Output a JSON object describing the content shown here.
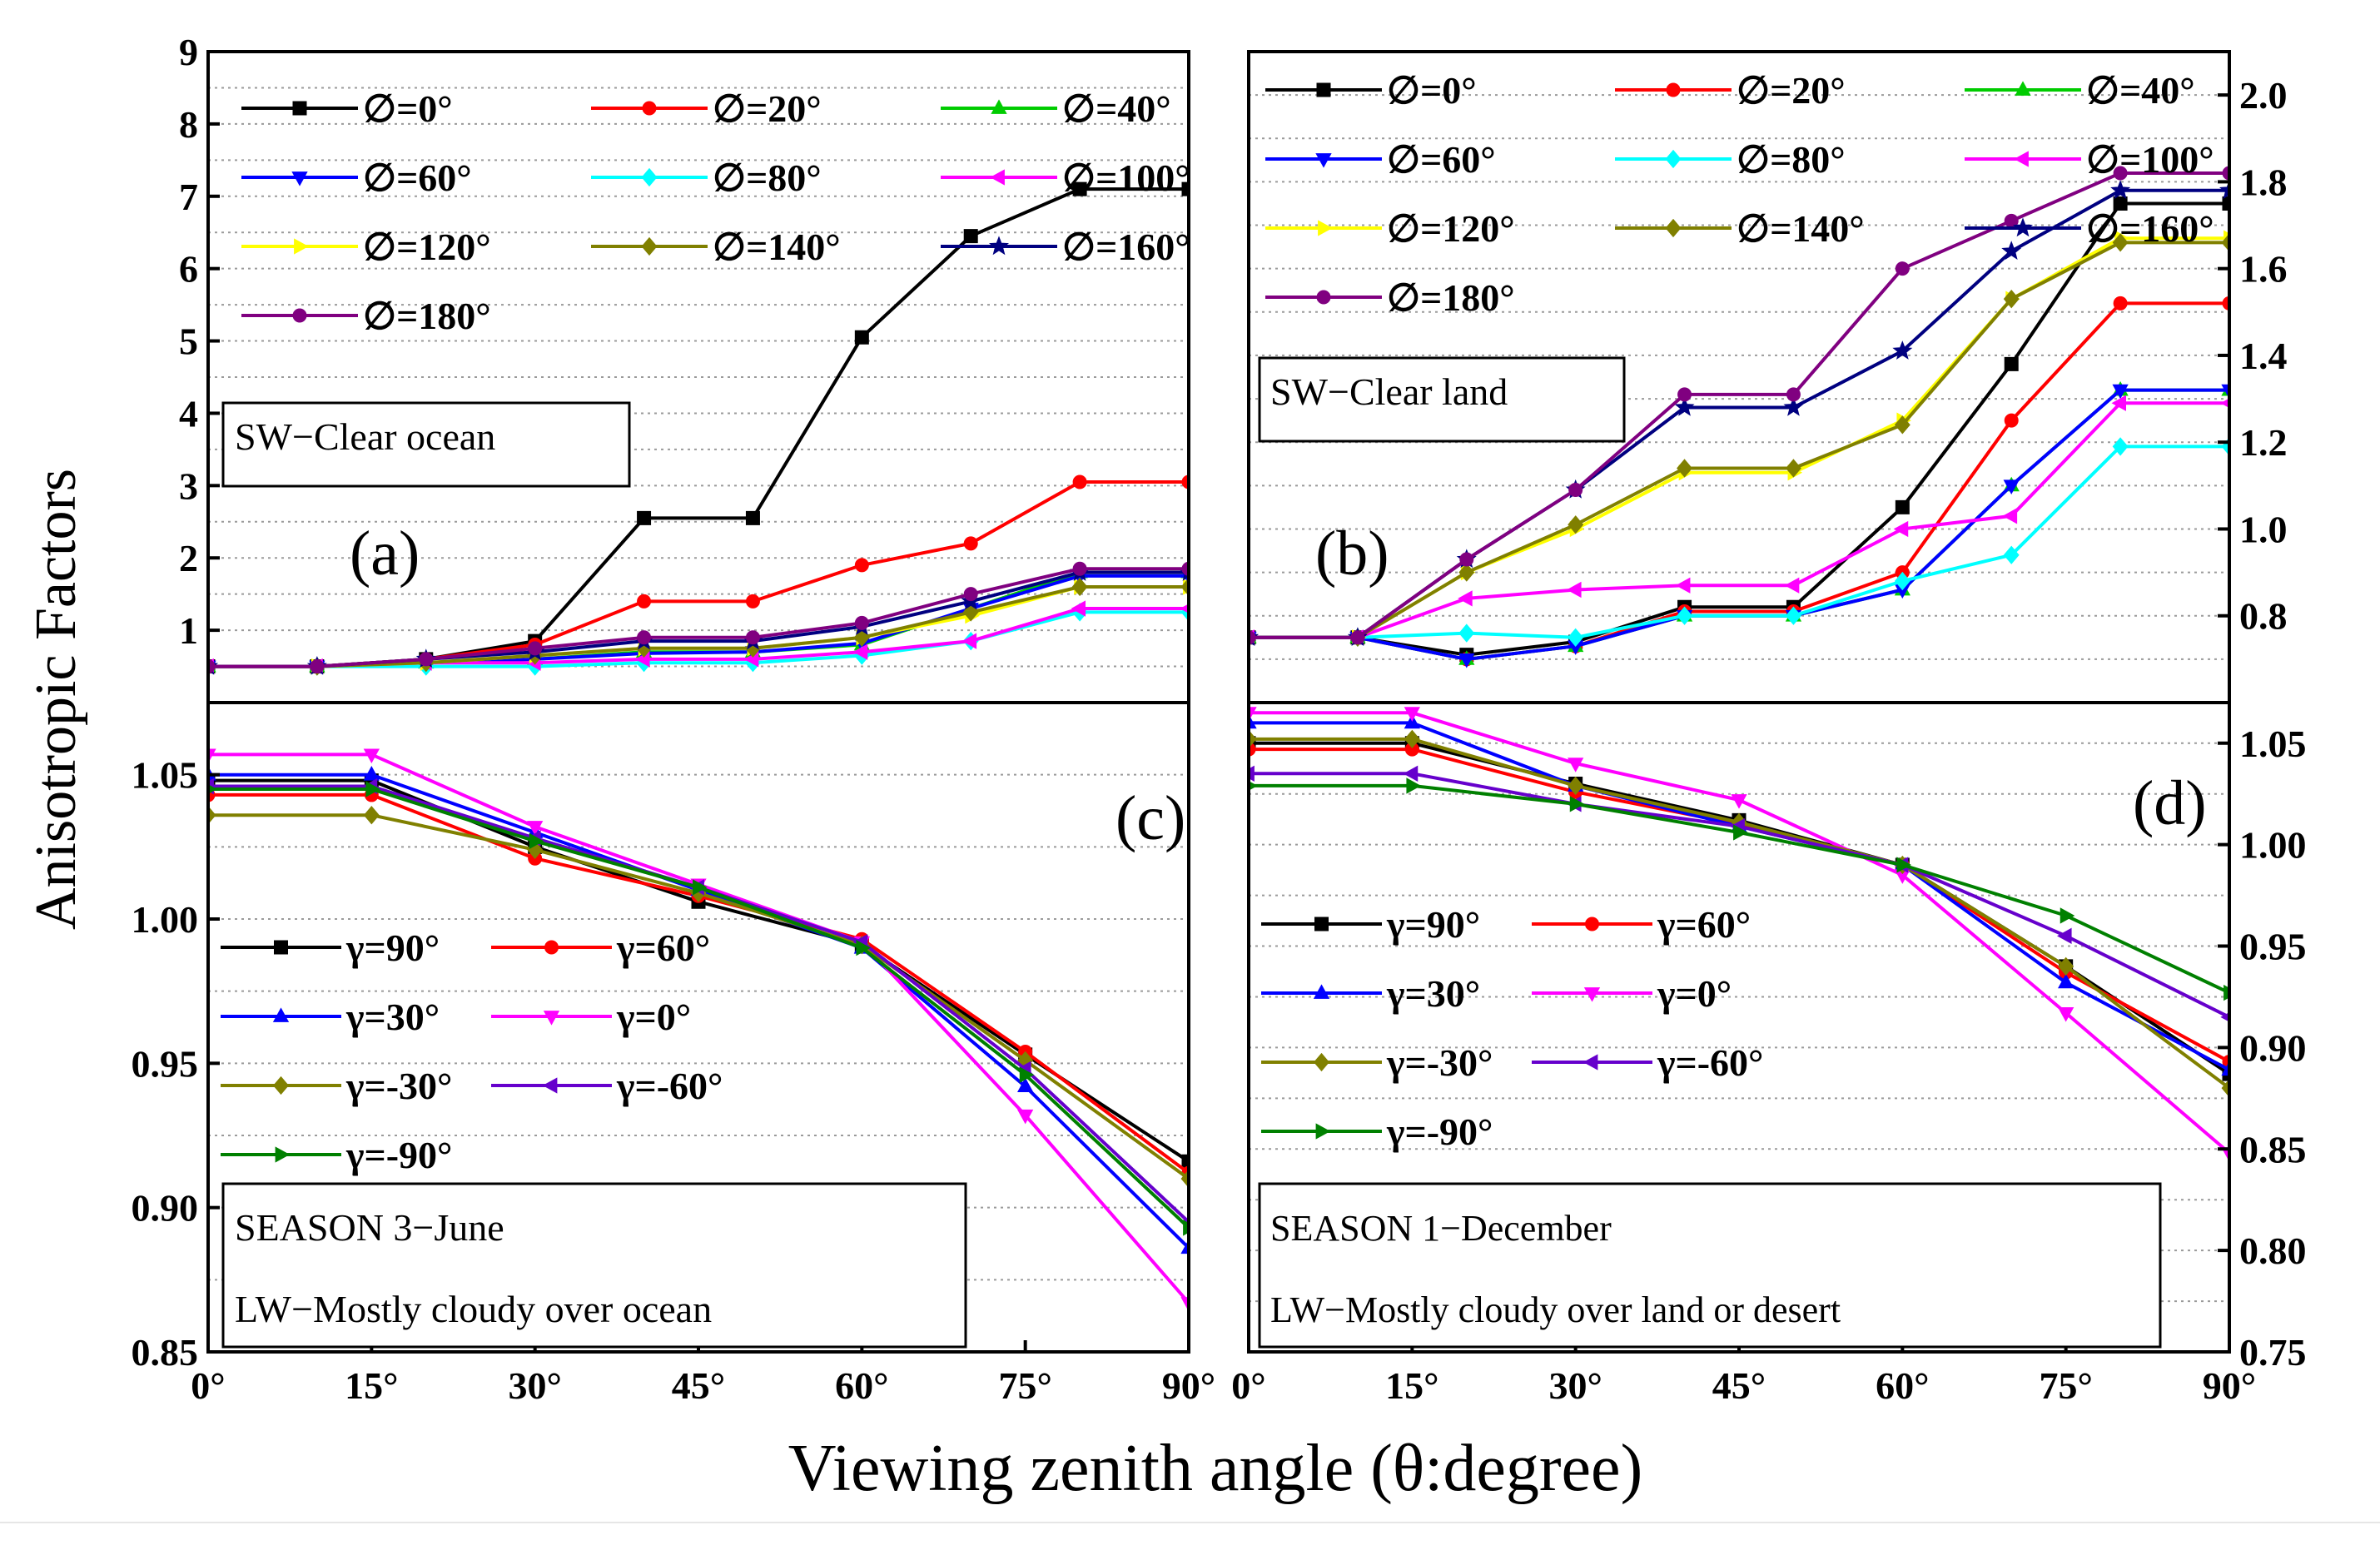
{
  "figure": {
    "ylabel": "Anisotropic Factors",
    "xlabel": "Viewing zenith angle (θ:degree)"
  },
  "chart_data": [
    {
      "id": "a",
      "type": "line",
      "panel_label": "(a)",
      "caption": [
        "SW−Clear ocean"
      ],
      "xlim": [
        0,
        90
      ],
      "ylim": [
        0,
        9
      ],
      "y_axis_side": "left",
      "xticks": [],
      "yticks": [
        1,
        2,
        3,
        4,
        5,
        6,
        7,
        8,
        9
      ],
      "yticklabels": [
        "1",
        "2",
        "3",
        "4",
        "5",
        "6",
        "7",
        "8",
        "9"
      ],
      "legend_columns": 3,
      "x": [
        0,
        10,
        20,
        30,
        40,
        50,
        60,
        70,
        80,
        90
      ],
      "series": [
        {
          "name": "∅=0°",
          "color": "#000000",
          "marker": "square",
          "values": [
            0.5,
            0.5,
            0.6,
            0.85,
            2.55,
            2.55,
            5.05,
            6.45,
            7.1,
            7.1
          ]
        },
        {
          "name": "∅=20°",
          "color": "#ff0000",
          "marker": "circle",
          "values": [
            0.5,
            0.5,
            0.6,
            0.8,
            1.4,
            1.4,
            1.9,
            2.2,
            3.05,
            3.05
          ]
        },
        {
          "name": "∅=40°",
          "color": "#00cc00",
          "marker": "triangle",
          "values": [
            0.5,
            0.5,
            0.55,
            0.6,
            0.7,
            0.7,
            0.8,
            1.3,
            1.8,
            1.8
          ]
        },
        {
          "name": "∅=60°",
          "color": "#0000ff",
          "marker": "triangle-down",
          "values": [
            0.5,
            0.5,
            0.55,
            0.6,
            0.68,
            0.7,
            0.82,
            1.3,
            1.75,
            1.75
          ]
        },
        {
          "name": "∅=80°",
          "color": "#00ffff",
          "marker": "diamond",
          "values": [
            0.5,
            0.5,
            0.5,
            0.5,
            0.55,
            0.55,
            0.65,
            0.85,
            1.25,
            1.25
          ]
        },
        {
          "name": "∅=100°",
          "color": "#ff00ff",
          "marker": "triangle-left",
          "values": [
            0.5,
            0.5,
            0.55,
            0.55,
            0.6,
            0.6,
            0.7,
            0.85,
            1.3,
            1.3
          ]
        },
        {
          "name": "∅=120°",
          "color": "#ffff00",
          "marker": "triangle-right",
          "values": [
            0.5,
            0.5,
            0.55,
            0.65,
            0.75,
            0.75,
            0.9,
            1.2,
            1.6,
            1.6
          ]
        },
        {
          "name": "∅=140°",
          "color": "#808000",
          "marker": "diamond",
          "values": [
            0.5,
            0.5,
            0.55,
            0.65,
            0.75,
            0.75,
            0.9,
            1.25,
            1.6,
            1.6
          ]
        },
        {
          "name": "∅=160°",
          "color": "#000080",
          "marker": "star",
          "values": [
            0.5,
            0.5,
            0.6,
            0.7,
            0.85,
            0.85,
            1.05,
            1.4,
            1.8,
            1.8
          ]
        },
        {
          "name": "∅=180°",
          "color": "#800080",
          "marker": "circle",
          "values": [
            0.5,
            0.5,
            0.6,
            0.75,
            0.9,
            0.9,
            1.1,
            1.5,
            1.85,
            1.85
          ]
        }
      ]
    },
    {
      "id": "b",
      "type": "line",
      "panel_label": "(b)",
      "caption": [
        "SW−Clear land"
      ],
      "xlim": [
        0,
        90
      ],
      "ylim": [
        0.6,
        2.1
      ],
      "y_axis_side": "right",
      "xticks": [],
      "yticks": [
        0.8,
        1.0,
        1.2,
        1.4,
        1.6,
        1.8,
        2.0
      ],
      "yticklabels": [
        "0.8",
        "1.0",
        "1.2",
        "1.4",
        "1.6",
        "1.8",
        "2.0"
      ],
      "legend_columns": 3,
      "x": [
        0,
        10,
        20,
        30,
        40,
        50,
        60,
        70,
        80,
        90
      ],
      "series": [
        {
          "name": "∅=0°",
          "color": "#000000",
          "marker": "square",
          "values": [
            0.75,
            0.75,
            0.71,
            0.74,
            0.82,
            0.82,
            1.05,
            1.38,
            1.75,
            1.75
          ]
        },
        {
          "name": "∅=20°",
          "color": "#ff0000",
          "marker": "circle",
          "values": [
            0.75,
            0.75,
            0.7,
            0.73,
            0.81,
            0.81,
            0.9,
            1.25,
            1.52,
            1.52
          ]
        },
        {
          "name": "∅=40°",
          "color": "#00cc00",
          "marker": "triangle",
          "values": [
            0.75,
            0.75,
            0.7,
            0.73,
            0.8,
            0.8,
            0.86,
            1.1,
            1.32,
            1.32
          ]
        },
        {
          "name": "∅=60°",
          "color": "#0000ff",
          "marker": "triangle-down",
          "values": [
            0.75,
            0.75,
            0.7,
            0.73,
            0.8,
            0.8,
            0.86,
            1.1,
            1.32,
            1.32
          ]
        },
        {
          "name": "∅=80°",
          "color": "#00ffff",
          "marker": "diamond",
          "values": [
            0.75,
            0.75,
            0.76,
            0.75,
            0.8,
            0.8,
            0.88,
            0.94,
            1.19,
            1.19
          ]
        },
        {
          "name": "∅=100°",
          "color": "#ff00ff",
          "marker": "triangle-left",
          "values": [
            0.75,
            0.75,
            0.84,
            0.86,
            0.87,
            0.87,
            1.0,
            1.03,
            1.29,
            1.29
          ]
        },
        {
          "name": "∅=120°",
          "color": "#ffff00",
          "marker": "triangle-right",
          "values": [
            0.75,
            0.75,
            0.9,
            1.0,
            1.13,
            1.13,
            1.25,
            1.53,
            1.67,
            1.67
          ]
        },
        {
          "name": "∅=140°",
          "color": "#808000",
          "marker": "diamond",
          "values": [
            0.75,
            0.75,
            0.9,
            1.01,
            1.14,
            1.14,
            1.24,
            1.53,
            1.66,
            1.66
          ]
        },
        {
          "name": "∅=160°",
          "color": "#000080",
          "marker": "star",
          "values": [
            0.75,
            0.75,
            0.93,
            1.09,
            1.28,
            1.28,
            1.41,
            1.64,
            1.78,
            1.78
          ]
        },
        {
          "name": "∅=180°",
          "color": "#800080",
          "marker": "circle",
          "values": [
            0.75,
            0.75,
            0.93,
            1.09,
            1.31,
            1.31,
            1.6,
            1.71,
            1.82,
            1.82
          ]
        }
      ]
    },
    {
      "id": "c",
      "type": "line",
      "panel_label": "(c)",
      "caption": [
        "SEASON 3−June",
        "LW−Mostly cloudy over ocean"
      ],
      "xlim": [
        0,
        90
      ],
      "ylim": [
        0.85,
        1.075
      ],
      "y_axis_side": "left",
      "xticks": [
        0,
        15,
        30,
        45,
        60,
        75,
        90
      ],
      "xticklabels": [
        "0°",
        "15°",
        "30°",
        "45°",
        "60°",
        "75°",
        "90°"
      ],
      "yticks": [
        0.85,
        0.9,
        0.95,
        1.0,
        1.05
      ],
      "yticklabels": [
        "0.85",
        "0.90",
        "0.95",
        "1.00",
        "1.05"
      ],
      "legend_columns": 2,
      "x": [
        0,
        15,
        30,
        45,
        60,
        75,
        90
      ],
      "series": [
        {
          "name": "γ=90°",
          "color": "#000000",
          "marker": "square",
          "values": [
            1.048,
            1.048,
            1.025,
            1.006,
            0.991,
            0.953,
            0.916
          ]
        },
        {
          "name": "γ=60°",
          "color": "#ff0000",
          "marker": "circle",
          "values": [
            1.043,
            1.043,
            1.021,
            1.008,
            0.993,
            0.954,
            0.912
          ]
        },
        {
          "name": "γ=30°",
          "color": "#0000ff",
          "marker": "triangle",
          "values": [
            1.05,
            1.05,
            1.03,
            1.01,
            0.99,
            0.942,
            0.886
          ]
        },
        {
          "name": "γ=0°",
          "color": "#ff00ff",
          "marker": "triangle-down",
          "values": [
            1.057,
            1.057,
            1.032,
            1.012,
            0.992,
            0.932,
            0.867
          ]
        },
        {
          "name": "γ=-30°",
          "color": "#808000",
          "marker": "diamond",
          "values": [
            1.036,
            1.036,
            1.024,
            1.009,
            0.991,
            0.951,
            0.91
          ]
        },
        {
          "name": "γ=-60°",
          "color": "#6600cc",
          "marker": "triangle-left",
          "values": [
            1.046,
            1.046,
            1.028,
            1.011,
            0.992,
            0.948,
            0.895
          ]
        },
        {
          "name": "γ=-90°",
          "color": "#008000",
          "marker": "triangle-right",
          "values": [
            1.045,
            1.045,
            1.027,
            1.011,
            0.99,
            0.946,
            0.893
          ]
        }
      ]
    },
    {
      "id": "d",
      "type": "line",
      "panel_label": "(d)",
      "caption": [
        "SEASON 1−December",
        "LW−Mostly cloudy over land or desert"
      ],
      "xlim": [
        0,
        90
      ],
      "ylim": [
        0.75,
        1.07
      ],
      "y_axis_side": "right",
      "xticks": [
        0,
        15,
        30,
        45,
        60,
        75,
        90
      ],
      "xticklabels": [
        "0°",
        "15°",
        "30°",
        "45°",
        "60°",
        "75°",
        "90°"
      ],
      "yticks": [
        0.75,
        0.8,
        0.85,
        0.9,
        0.95,
        1.0,
        1.05
      ],
      "yticklabels": [
        "0.75",
        "0.80",
        "0.85",
        "0.90",
        "0.95",
        "1.00",
        "1.05"
      ],
      "legend_columns": 2,
      "x": [
        0,
        15,
        30,
        45,
        60,
        75,
        90
      ],
      "series": [
        {
          "name": "γ=90°",
          "color": "#000000",
          "marker": "square",
          "values": [
            1.05,
            1.05,
            1.03,
            1.012,
            0.99,
            0.94,
            0.887
          ]
        },
        {
          "name": "γ=60°",
          "color": "#ff0000",
          "marker": "circle",
          "values": [
            1.047,
            1.047,
            1.026,
            1.01,
            0.99,
            0.937,
            0.893
          ]
        },
        {
          "name": "γ=30°",
          "color": "#0000ff",
          "marker": "triangle",
          "values": [
            1.06,
            1.06,
            1.029,
            1.009,
            0.99,
            0.932,
            0.889
          ]
        },
        {
          "name": "γ=0°",
          "color": "#ff00ff",
          "marker": "triangle-down",
          "values": [
            1.065,
            1.065,
            1.04,
            1.022,
            0.985,
            0.917,
            0.848
          ]
        },
        {
          "name": "γ=-30°",
          "color": "#808000",
          "marker": "diamond",
          "values": [
            1.052,
            1.052,
            1.029,
            1.011,
            0.99,
            0.94,
            0.88
          ]
        },
        {
          "name": "γ=-60°",
          "color": "#6600cc",
          "marker": "triangle-left",
          "values": [
            1.035,
            1.035,
            1.02,
            1.009,
            0.99,
            0.955,
            0.915
          ]
        },
        {
          "name": "γ=-90°",
          "color": "#008000",
          "marker": "triangle-right",
          "values": [
            1.029,
            1.029,
            1.02,
            1.006,
            0.99,
            0.965,
            0.927
          ]
        }
      ]
    }
  ]
}
